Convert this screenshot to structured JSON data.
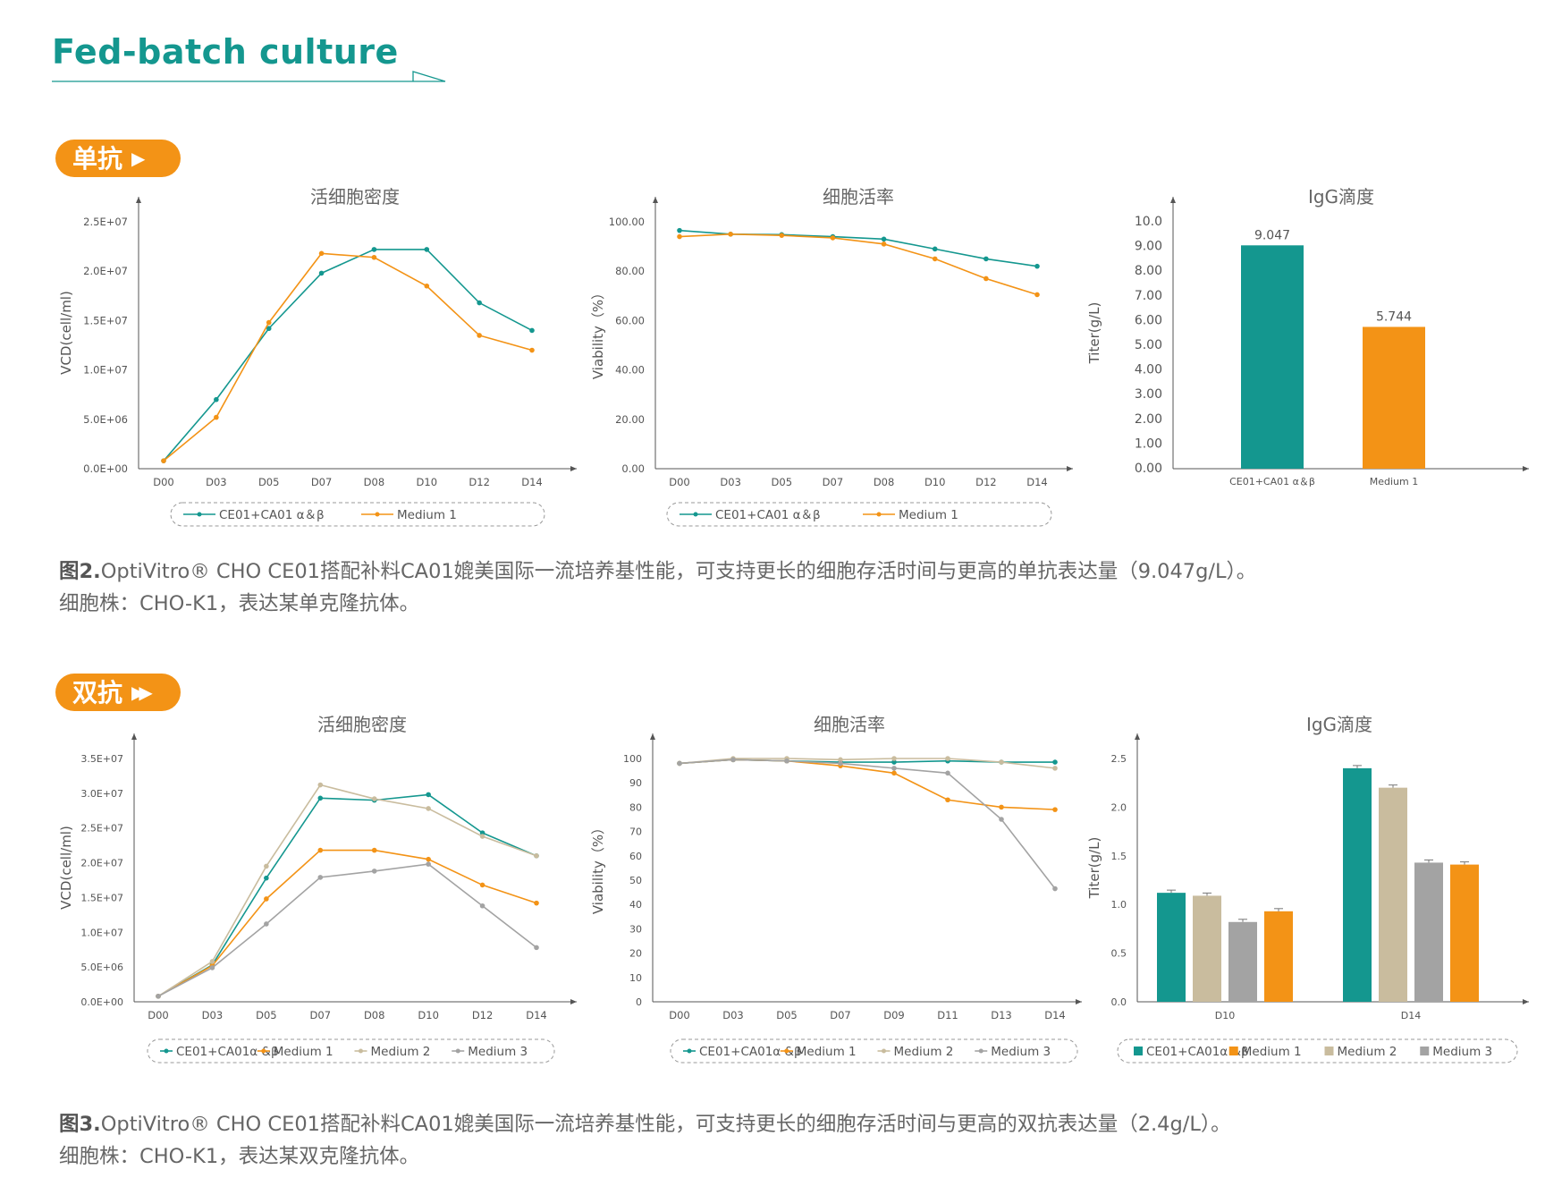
{
  "page_title": "Fed-batch culture",
  "colors": {
    "teal": "#14978f",
    "orange": "#f39316",
    "beige": "#c9bc9e",
    "grey": "#a3a3a3",
    "title": "#14978f"
  },
  "sections": [
    {
      "tag": "单抗",
      "icon": "play-arrow-icon"
    },
    {
      "tag": "双抗",
      "icon": "double-arrow-icon"
    }
  ],
  "captions": [
    {
      "fig": "图2.",
      "line1": "OptiVitro® CHO CE01搭配补料CA01媲美国际一流培养基性能，可支持更长的细胞存活时间与更高的单抗表达量（9.047g/L）。",
      "line2": "细胞株：CHO-K1，表达某单克隆抗体。"
    },
    {
      "fig": "图3.",
      "line1": "OptiVitro® CHO CE01搭配补料CA01媲美国际一流培养基性能，可支持更长的细胞存活时间与更高的双抗表达量（2.4g/L）。",
      "line2": "细胞株：CHO-K1，表达某双克隆抗体。"
    }
  ],
  "chart_data": [
    {
      "type": "line",
      "title": "活细胞密度",
      "ylabel": "VCD(cell/ml)",
      "ylim": [
        0,
        25000000
      ],
      "yticks": [
        "0.0E+00",
        "5.0E+06",
        "1.0E+07",
        "1.5E+07",
        "2.0E+07",
        "2.5E+07"
      ],
      "categories": [
        "D00",
        "D03",
        "D05",
        "D07",
        "D08",
        "D10",
        "D12",
        "D14"
      ],
      "series": [
        {
          "name": "CE01+CA01 α＆β",
          "color": "#14978f",
          "values": [
            800000,
            7000000,
            14200000,
            19800000,
            22200000,
            22200000,
            16800000,
            14000000
          ]
        },
        {
          "name": "Medium 1",
          "color": "#f39316",
          "values": [
            800000,
            5200000,
            14800000,
            21800000,
            21400000,
            18500000,
            13500000,
            12000000
          ]
        }
      ]
    },
    {
      "type": "line",
      "title": "细胞活率",
      "ylabel": "Viability（%）",
      "ylim": [
        0,
        100
      ],
      "yticks": [
        "0.00",
        "20.00",
        "40.00",
        "60.00",
        "80.00",
        "100.00"
      ],
      "categories": [
        "D00",
        "D03",
        "D05",
        "D07",
        "D08",
        "D10",
        "D12",
        "D14"
      ],
      "series": [
        {
          "name": "CE01+CA01 α＆β",
          "color": "#14978f",
          "values": [
            96.5,
            95,
            94.8,
            94,
            93,
            89,
            85,
            82
          ]
        },
        {
          "name": "Medium 1",
          "color": "#f39316",
          "values": [
            94,
            95,
            94.5,
            93.5,
            91,
            85,
            77,
            70.5
          ]
        }
      ]
    },
    {
      "type": "bar",
      "title": "IgG滴度",
      "ylabel": "Titer(g/L)",
      "ylim": [
        0,
        10
      ],
      "yticks": [
        "0.00",
        "1.00",
        "2.00",
        "3.00",
        "4.00",
        "5.00",
        "6.00",
        "7.00",
        "8.00",
        "9.00",
        "10.0"
      ],
      "categories": [
        "CE01+CA01 α＆β",
        "Medium 1"
      ],
      "values": [
        9.047,
        5.744
      ],
      "labels": [
        "9.047",
        "5.744"
      ],
      "colors": [
        "#14978f",
        "#f39316"
      ]
    },
    {
      "type": "line",
      "title": "活细胞密度",
      "ylabel": "VCD(cell/ml)",
      "ylim": [
        0,
        35000000
      ],
      "yticks": [
        "0.0E+00",
        "5.0E+06",
        "1.0E+07",
        "1.5E+07",
        "2.0E+07",
        "2.5E+07",
        "3.0E+07",
        "3.5E+07"
      ],
      "categories": [
        "D00",
        "D03",
        "D05",
        "D07",
        "D08",
        "D10",
        "D12",
        "D14"
      ],
      "series": [
        {
          "name": "CE01+CA01α &β",
          "color": "#14978f",
          "values": [
            800000,
            5300000,
            17800000,
            29300000,
            29000000,
            29800000,
            24300000,
            21000000
          ]
        },
        {
          "name": "Medium 1",
          "color": "#f39316",
          "values": [
            800000,
            5200000,
            14800000,
            21800000,
            21800000,
            20500000,
            16800000,
            14200000
          ]
        },
        {
          "name": "Medium 2",
          "color": "#c9bc9e",
          "values": [
            800000,
            5800000,
            19500000,
            31200000,
            29200000,
            27800000,
            23800000,
            21000000
          ]
        },
        {
          "name": "Medium 3",
          "color": "#a3a3a3",
          "values": [
            800000,
            4900000,
            11200000,
            17900000,
            18800000,
            19800000,
            13800000,
            7800000
          ]
        }
      ]
    },
    {
      "type": "line",
      "title": "细胞活率",
      "ylabel": "Viability（%）",
      "ylim": [
        0,
        100
      ],
      "yticks": [
        "0",
        "10",
        "20",
        "30",
        "40",
        "50",
        "60",
        "70",
        "80",
        "90",
        "100"
      ],
      "categories": [
        "D00",
        "D03",
        "D05",
        "D07",
        "D09",
        "D11",
        "D13",
        "D14"
      ],
      "series": [
        {
          "name": "CE01+CA01α &β",
          "color": "#14978f",
          "values": [
            98,
            99.5,
            99,
            98.5,
            98.5,
            99,
            98.5,
            98.5
          ]
        },
        {
          "name": "Medium 1",
          "color": "#f39316",
          "values": [
            98,
            99.5,
            99,
            97,
            94,
            83,
            80,
            79
          ]
        },
        {
          "name": "Medium 2",
          "color": "#c9bc9e",
          "values": [
            98,
            100,
            100,
            99.5,
            100,
            100,
            98.5,
            96
          ]
        },
        {
          "name": "Medium 3",
          "color": "#a3a3a3",
          "values": [
            98,
            99.5,
            99,
            98,
            96,
            94,
            75,
            46.5
          ]
        }
      ]
    },
    {
      "type": "bar",
      "title": "IgG滴度",
      "ylabel": "Titer(g/L)",
      "ylim": [
        0,
        2.5
      ],
      "yticks": [
        "0.0",
        "0.5",
        "1.0",
        "1.5",
        "2.0",
        "2.5"
      ],
      "categories": [
        "D10",
        "D14"
      ],
      "series": [
        {
          "name": "CE01+CA01α &β",
          "color": "#14978f",
          "values": [
            1.12,
            2.4
          ]
        },
        {
          "name": "Medium 1",
          "color": "#f39316",
          "values": [
            0.93,
            1.41
          ]
        },
        {
          "name": "Medium 2",
          "color": "#c9bc9e",
          "values": [
            1.09,
            2.2
          ]
        },
        {
          "name": "Medium 3",
          "color": "#a3a3a3",
          "values": [
            0.82,
            1.43
          ]
        }
      ]
    }
  ]
}
